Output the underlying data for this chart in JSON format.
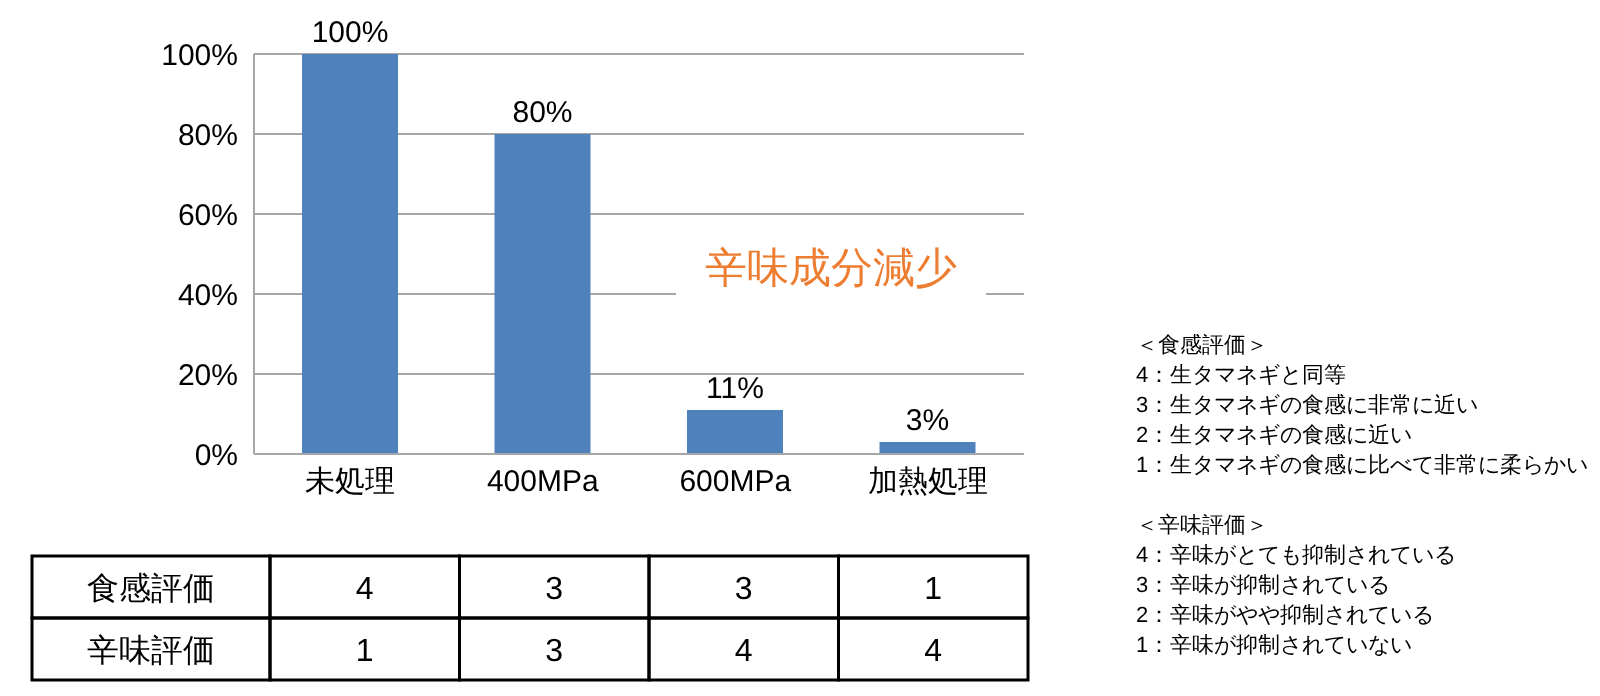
{
  "chart_data": [
    {
      "type": "bar",
      "categories": [
        "未処理",
        "400MPa",
        "600MPa",
        "加熱処理"
      ],
      "values": [
        100,
        80,
        11,
        3
      ],
      "color": "#4f81bd",
      "ylim": [
        0,
        100
      ],
      "yticks": [
        {
          "value": 0,
          "label": "0%"
        },
        {
          "value": 20,
          "label": "20%"
        },
        {
          "value": 40,
          "label": "40%"
        },
        {
          "value": 60,
          "label": "60%"
        },
        {
          "value": 80,
          "label": "80%"
        },
        {
          "value": 100,
          "label": "100%"
        }
      ],
      "grid": "y",
      "data_labels": true,
      "value_labels": [
        "100%",
        "80%",
        "11%",
        "3%"
      ],
      "annotations": [
        "辛味成分減少",
        "＜食感評価＞\n4：生タマネギと同等\n3：生タマネギの食感に非常に近い\n2：生タマネギの食感に近い\n1：生タマネギの食感に比べて非常に柔らかい",
        "＜辛味評価＞\n4：辛味がとても抑制されている\n3：辛味が抑制されている\n2：辛味がやや抑制されている\n1：辛味が抑制されていない"
      ]
    },
    {
      "type": "other",
      "annotations": [
        "食感評価",
        "4",
        "3",
        "3",
        "1",
        "辛味評価",
        "1",
        "3",
        "4",
        "4"
      ]
    }
  ]
}
